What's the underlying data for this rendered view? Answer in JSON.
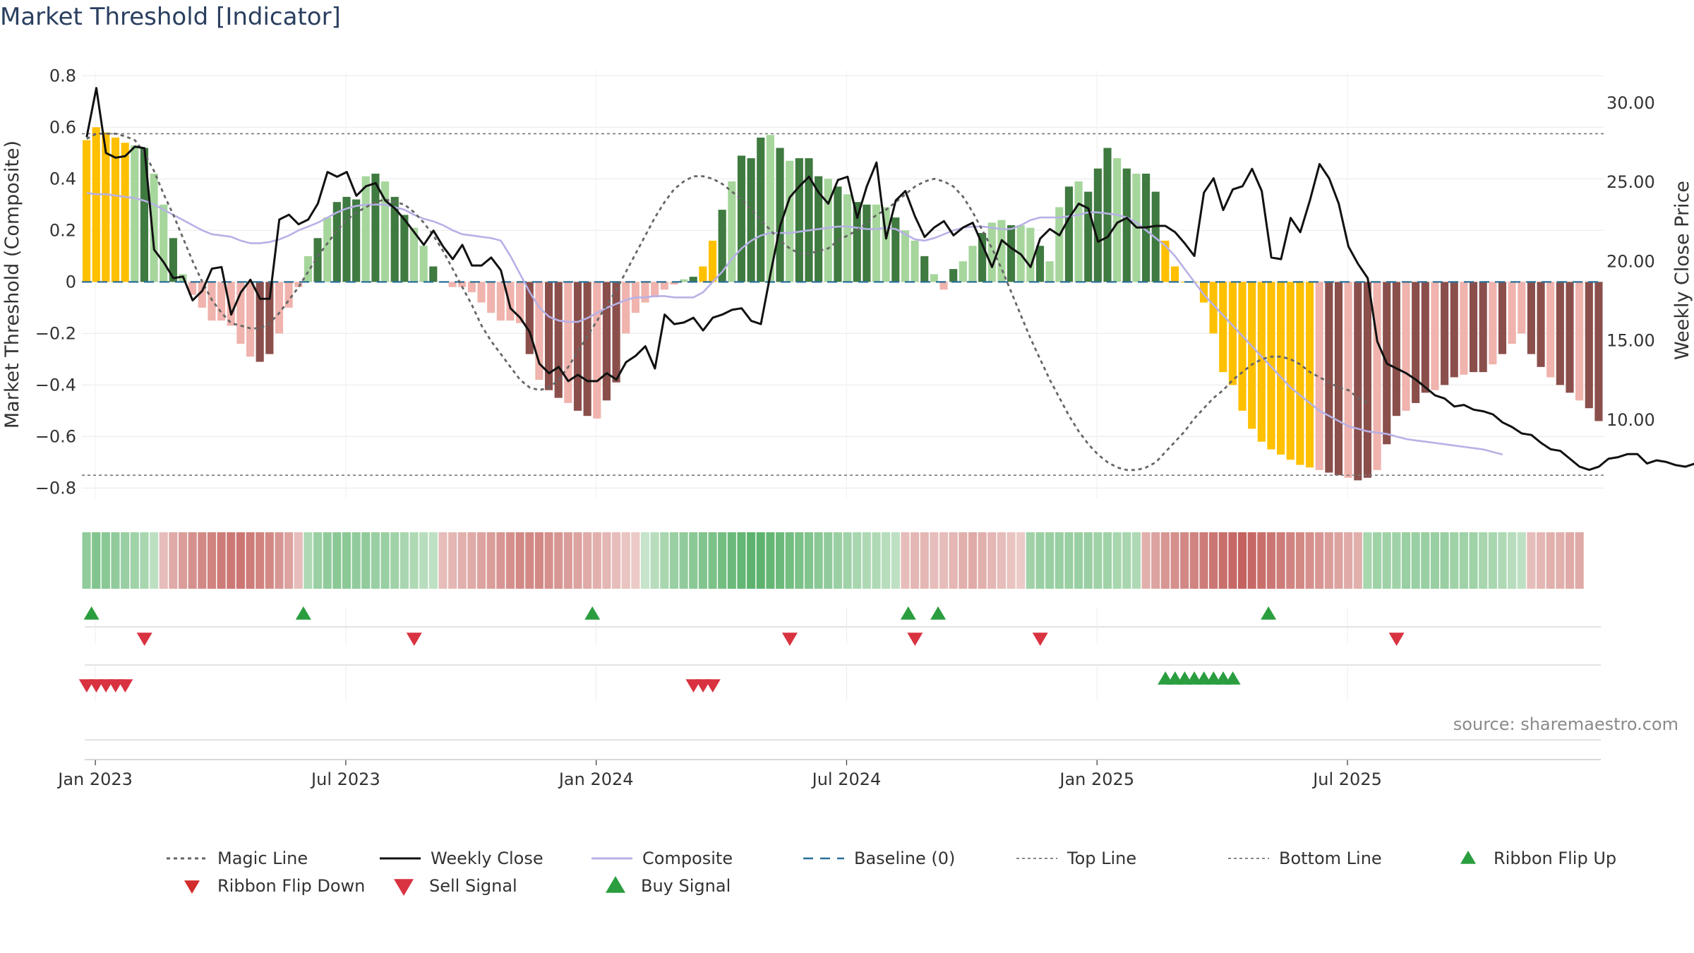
{
  "title": "Market Threshold [Indicator]",
  "source": "source: sharemaestro.com",
  "colors": {
    "strong_green": "#3f7a40",
    "light_green": "#a6d69c",
    "strong_red": "#8b4f4b",
    "light_red": "#f0b3ad",
    "gold": "#ffc000",
    "composite": "#b7b1e6",
    "close": "#111111",
    "magic": "#666666",
    "baseline": "#2a6f97",
    "buy": "#2a9d3f",
    "sell": "#d93240",
    "flip_down": "#d12b2b"
  },
  "chart_data": {
    "type": "bar",
    "title": "Market Threshold [Indicator]",
    "ylabel": "Market Threshold (Composite)",
    "y2label": "Weekly Close Price",
    "ylim": [
      -0.84,
      0.82
    ],
    "y2lim": [
      5.0,
      32.0
    ],
    "yticks": [
      "0.8",
      "0.6",
      "0.4",
      "0.2",
      "0",
      "−0.2",
      "−0.4",
      "−0.6",
      "−0.8"
    ],
    "yticks_values": [
      0.8,
      0.6,
      0.4,
      0.2,
      0,
      -0.2,
      -0.4,
      -0.6,
      -0.8
    ],
    "y2ticks": [
      "30.00",
      "25.00",
      "20.00",
      "15.00",
      "10.00"
    ],
    "y2ticks_values": [
      30,
      25,
      20,
      15,
      10
    ],
    "xticks": [
      "Jan 2023",
      "Jul 2023",
      "Jan 2024",
      "Jul 2024",
      "Jan 2025",
      "Jul 2025"
    ],
    "xticks_weeks": [
      0.9,
      26.9,
      52.9,
      78.9,
      104.9,
      130.9
    ],
    "top_line": 0.575,
    "bottom_line": -0.75,
    "grid": true,
    "legend_position": "bottom",
    "start": "2022-12-26",
    "composite_bars": [
      0.55,
      0.6,
      0.58,
      0.56,
      0.54,
      0.53,
      0.52,
      0.42,
      0.3,
      0.17,
      0.03,
      -0.05,
      -0.1,
      -0.15,
      -0.15,
      -0.17,
      -0.24,
      -0.29,
      -0.31,
      -0.28,
      -0.2,
      -0.1,
      -0.02,
      0.1,
      0.17,
      0.25,
      0.31,
      0.33,
      0.32,
      0.41,
      0.42,
      0.39,
      0.33,
      0.26,
      0.21,
      0.14,
      0.06,
      0.0,
      -0.02,
      -0.02,
      -0.04,
      -0.08,
      -0.12,
      -0.15,
      -0.15,
      -0.16,
      -0.28,
      -0.38,
      -0.42,
      -0.45,
      -0.47,
      -0.5,
      -0.52,
      -0.53,
      -0.46,
      -0.39,
      -0.2,
      -0.12,
      -0.08,
      -0.06,
      -0.03,
      -0.01,
      0.01,
      0.02,
      0.06,
      0.16,
      0.28,
      0.39,
      0.49,
      0.48,
      0.56,
      0.57,
      0.52,
      0.47,
      0.48,
      0.48,
      0.41,
      0.4,
      0.37,
      0.34,
      0.31,
      0.3,
      0.3,
      0.29,
      0.25,
      0.2,
      0.16,
      0.1,
      0.03,
      -0.03,
      0.05,
      0.08,
      0.14,
      0.19,
      0.23,
      0.24,
      0.22,
      0.22,
      0.21,
      0.14,
      0.08,
      0.29,
      0.37,
      0.39,
      0.35,
      0.44,
      0.52,
      0.48,
      0.44,
      0.42,
      0.42,
      0.35,
      0.16,
      0.06,
      0.0,
      0.0,
      -0.08,
      -0.2,
      -0.35,
      -0.4,
      -0.5,
      -0.57,
      -0.62,
      -0.65,
      -0.67,
      -0.69,
      -0.71,
      -0.72,
      -0.73,
      -0.74,
      -0.75,
      -0.76,
      -0.77,
      -0.76,
      -0.73,
      -0.63,
      -0.52,
      -0.5,
      -0.47,
      -0.43,
      -0.42,
      -0.4,
      -0.37,
      -0.36,
      -0.35,
      -0.35,
      -0.32,
      -0.28,
      -0.24,
      -0.2,
      -0.28,
      -0.33,
      -0.37,
      -0.4,
      -0.43,
      -0.46,
      -0.49,
      -0.54
    ],
    "bar_highlight_gold_weeks": [
      0,
      1,
      2,
      3,
      4,
      64,
      65,
      112,
      113,
      114,
      115,
      116,
      117,
      118,
      119,
      120,
      121,
      122,
      123,
      124,
      125,
      126,
      127
    ],
    "weekly_close": [
      27.8,
      30.9,
      26.8,
      26.5,
      26.6,
      27.2,
      27.1,
      20.7,
      19.9,
      18.9,
      19.0,
      17.5,
      18.1,
      19.5,
      19.6,
      16.6,
      18.0,
      18.8,
      17.6,
      17.6,
      22.6,
      22.9,
      22.3,
      22.6,
      23.6,
      25.6,
      25.3,
      25.6,
      24.1,
      24.7,
      24.9,
      23.8,
      23.3,
      22.6,
      21.8,
      21.0,
      21.9,
      20.9,
      20.1,
      21.0,
      19.7,
      19.7,
      20.2,
      19.4,
      17.0,
      16.4,
      15.5,
      13.5,
      12.9,
      13.3,
      12.4,
      12.8,
      12.4,
      12.4,
      12.9,
      12.5,
      13.6,
      14.0,
      14.6,
      13.2,
      16.6,
      16.0,
      16.1,
      16.4,
      15.6,
      16.4,
      16.6,
      16.9,
      17.0,
      16.2,
      16.0,
      19.2,
      22.2,
      24.0,
      24.7,
      25.3,
      24.3,
      23.6,
      25.1,
      25.3,
      22.7,
      24.7,
      26.2,
      21.4,
      23.8,
      24.4,
      22.8,
      21.5,
      22.1,
      22.5,
      21.6,
      22.1,
      22.4,
      21.0,
      19.6,
      21.3,
      20.8,
      20.4,
      19.6,
      21.4,
      22.0,
      21.6,
      22.7,
      23.6,
      23.3,
      21.2,
      21.5,
      22.4,
      22.7,
      22.1,
      22.1,
      22.2,
      22.2,
      21.8,
      21.1,
      20.3,
      24.3,
      25.2,
      23.2,
      24.5,
      24.7,
      25.8,
      24.4,
      20.2,
      20.1,
      22.7,
      21.8,
      23.8,
      26.1,
      25.2,
      23.6,
      20.9,
      19.8,
      18.9,
      14.9,
      13.5,
      13.2,
      12.9,
      12.5,
      12.0,
      11.5,
      11.3,
      10.8,
      10.9,
      10.6,
      10.5,
      10.3,
      9.8,
      9.5,
      9.1,
      9.0,
      8.5,
      8.1,
      8.0,
      7.5,
      7.0,
      6.8,
      7.0,
      7.5,
      7.6,
      7.8,
      7.8,
      7.2,
      7.4,
      7.3,
      7.1,
      7.0,
      7.2,
      7.2,
      6.8,
      6.9,
      6.7,
      7.5,
      7.6
    ],
    "magic_line": [
      0.555,
      0.575,
      0.575,
      0.575,
      0.565,
      0.55,
      0.5,
      0.43,
      0.34,
      0.26,
      0.17,
      0.08,
      0.0,
      -0.07,
      -0.12,
      -0.16,
      -0.17,
      -0.18,
      -0.18,
      -0.16,
      -0.12,
      -0.07,
      -0.02,
      0.04,
      0.1,
      0.15,
      0.2,
      0.24,
      0.27,
      0.29,
      0.31,
      0.32,
      0.31,
      0.3,
      0.27,
      0.23,
      0.18,
      0.12,
      0.05,
      -0.02,
      -0.09,
      -0.17,
      -0.23,
      -0.28,
      -0.33,
      -0.38,
      -0.41,
      -0.42,
      -0.41,
      -0.38,
      -0.33,
      -0.27,
      -0.21,
      -0.15,
      -0.09,
      -0.03,
      0.04,
      0.11,
      0.18,
      0.25,
      0.31,
      0.36,
      0.39,
      0.41,
      0.41,
      0.4,
      0.38,
      0.35,
      0.32,
      0.28,
      0.24,
      0.2,
      0.16,
      0.13,
      0.11,
      0.11,
      0.12,
      0.13,
      0.16,
      0.18,
      0.2,
      0.23,
      0.26,
      0.28,
      0.31,
      0.34,
      0.37,
      0.39,
      0.4,
      0.39,
      0.37,
      0.33,
      0.27,
      0.2,
      0.13,
      0.05,
      -0.04,
      -0.13,
      -0.22,
      -0.3,
      -0.38,
      -0.45,
      -0.52,
      -0.58,
      -0.63,
      -0.67,
      -0.7,
      -0.72,
      -0.73,
      -0.73,
      -0.72,
      -0.7,
      -0.66,
      -0.62,
      -0.58,
      -0.53,
      -0.49,
      -0.45,
      -0.42,
      -0.38,
      -0.35,
      -0.32,
      -0.3,
      -0.29,
      -0.29,
      -0.3,
      -0.32,
      -0.35,
      -0.37,
      -0.39,
      -0.41,
      -0.42,
      -0.45,
      -0.47
    ],
    "composite_smooth": [
      0.345,
      0.34,
      0.34,
      0.335,
      0.33,
      0.325,
      0.315,
      0.3,
      0.28,
      0.26,
      0.24,
      0.22,
      0.2,
      0.185,
      0.18,
      0.175,
      0.16,
      0.15,
      0.15,
      0.155,
      0.165,
      0.18,
      0.2,
      0.215,
      0.23,
      0.25,
      0.27,
      0.285,
      0.295,
      0.3,
      0.3,
      0.3,
      0.29,
      0.28,
      0.26,
      0.245,
      0.235,
      0.22,
      0.2,
      0.185,
      0.18,
      0.175,
      0.17,
      0.16,
      0.1,
      0.03,
      -0.04,
      -0.1,
      -0.135,
      -0.15,
      -0.155,
      -0.155,
      -0.14,
      -0.12,
      -0.1,
      -0.085,
      -0.07,
      -0.06,
      -0.06,
      -0.055,
      -0.055,
      -0.06,
      -0.06,
      -0.06,
      -0.04,
      0.0,
      0.04,
      0.09,
      0.13,
      0.16,
      0.18,
      0.19,
      0.19,
      0.19,
      0.195,
      0.2,
      0.205,
      0.21,
      0.215,
      0.215,
      0.21,
      0.205,
      0.205,
      0.21,
      0.205,
      0.185,
      0.165,
      0.16,
      0.17,
      0.185,
      0.2,
      0.21,
      0.215,
      0.215,
      0.21,
      0.205,
      0.205,
      0.22,
      0.24,
      0.25,
      0.25,
      0.25,
      0.255,
      0.26,
      0.27,
      0.27,
      0.265,
      0.26,
      0.25,
      0.23,
      0.2,
      0.17,
      0.14,
      0.1,
      0.05,
      0.0,
      -0.05,
      -0.09,
      -0.13,
      -0.17,
      -0.21,
      -0.25,
      -0.29,
      -0.33,
      -0.37,
      -0.41,
      -0.44,
      -0.47,
      -0.5,
      -0.52,
      -0.54,
      -0.56,
      -0.57,
      -0.58,
      -0.585,
      -0.59,
      -0.6,
      -0.61,
      -0.615,
      -0.62,
      -0.625,
      -0.63,
      -0.635,
      -0.64,
      -0.645,
      -0.65,
      -0.66,
      -0.67
    ],
    "ribbon": [
      0.5,
      0.6,
      0.55,
      0.5,
      0.45,
      0.4,
      0.35,
      0.2,
      -0.2,
      -0.35,
      -0.45,
      -0.55,
      -0.6,
      -0.65,
      -0.7,
      -0.72,
      -0.75,
      -0.7,
      -0.65,
      -0.6,
      -0.5,
      -0.4,
      -0.2,
      0.3,
      0.45,
      0.5,
      0.55,
      0.55,
      0.5,
      0.5,
      0.45,
      0.45,
      0.4,
      0.35,
      0.3,
      0.25,
      0.2,
      -0.2,
      -0.25,
      -0.3,
      -0.35,
      -0.4,
      -0.45,
      -0.5,
      -0.55,
      -0.6,
      -0.6,
      -0.6,
      -0.55,
      -0.5,
      -0.45,
      -0.4,
      -0.35,
      -0.3,
      -0.25,
      -0.2,
      -0.15,
      -0.1,
      0.15,
      0.25,
      0.35,
      0.45,
      0.5,
      0.55,
      0.6,
      0.65,
      0.7,
      0.75,
      0.8,
      0.85,
      0.85,
      0.8,
      0.75,
      0.7,
      0.65,
      0.6,
      0.55,
      0.5,
      0.45,
      0.4,
      0.35,
      0.3,
      0.3,
      0.25,
      0.2,
      -0.2,
      -0.25,
      -0.25,
      -0.2,
      -0.2,
      -0.25,
      -0.3,
      -0.35,
      -0.3,
      -0.25,
      -0.2,
      -0.15,
      -0.1,
      0.4,
      0.45,
      0.45,
      0.45,
      0.45,
      0.45,
      0.45,
      0.4,
      0.4,
      0.35,
      0.35,
      0.3,
      -0.3,
      -0.4,
      -0.5,
      -0.55,
      -0.6,
      -0.65,
      -0.7,
      -0.75,
      -0.8,
      -0.85,
      -0.9,
      -0.85,
      -0.8,
      -0.75,
      -0.7,
      -0.65,
      -0.6,
      -0.55,
      -0.5,
      -0.45,
      -0.4,
      -0.35,
      -0.3,
      0.35,
      0.4,
      0.4,
      0.4,
      0.45,
      0.45,
      0.45,
      0.45,
      0.45,
      0.4,
      0.4,
      0.4,
      0.35,
      0.35,
      0.3,
      0.25,
      0.2,
      -0.2,
      -0.25,
      -0.3,
      -0.3,
      -0.35,
      -0.35
    ],
    "buy_signal_weeks": [
      0.5,
      22.5,
      52.5,
      85.3,
      88.4,
      122.7
    ],
    "sell_signal_weeks": [
      6,
      34,
      73,
      86,
      99,
      136
    ],
    "ribbon_flip_down_weeks": [
      0,
      1,
      2,
      3,
      4,
      63,
      64,
      65
    ],
    "ribbon_flip_up_weeks": [
      112,
      113,
      114,
      115,
      116,
      117,
      118,
      119
    ]
  },
  "legend": [
    {
      "label": "Magic Line",
      "kind": "dot-line"
    },
    {
      "label": "Weekly Close",
      "kind": "solid-line"
    },
    {
      "label": "Composite",
      "kind": "composite-line"
    },
    {
      "label": "Baseline (0)",
      "kind": "dash-line"
    },
    {
      "label": "Top Line",
      "kind": "thin-dot-line"
    },
    {
      "label": "Bottom Line",
      "kind": "thin-dot-line"
    },
    {
      "label": "Ribbon Flip Up",
      "kind": "flip-up"
    },
    {
      "label": "Ribbon Flip Down",
      "kind": "flip-down"
    },
    {
      "label": "Sell Signal",
      "kind": "sell"
    },
    {
      "label": "Buy Signal",
      "kind": "buy"
    }
  ]
}
